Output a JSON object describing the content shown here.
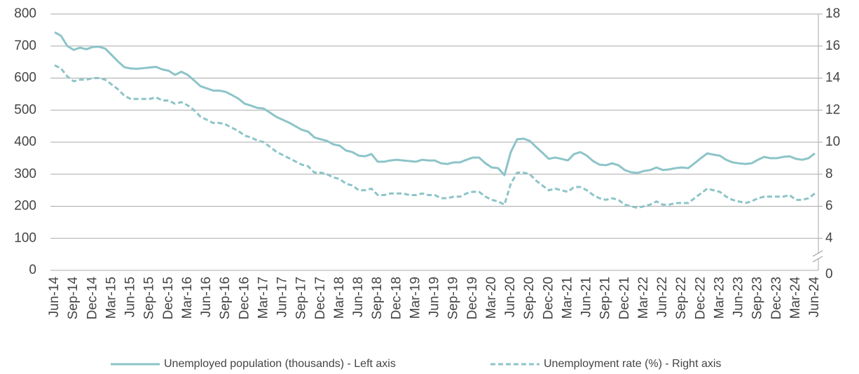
{
  "chart_data": {
    "type": "line",
    "categories": [
      "Jun-14",
      null,
      null,
      "Sep-14",
      null,
      null,
      "Dec-14",
      null,
      null,
      "Mar-15",
      null,
      null,
      "Jun-15",
      null,
      null,
      "Sep-15",
      null,
      null,
      "Dec-15",
      null,
      null,
      "Mar-16",
      null,
      null,
      "Jun-16",
      null,
      null,
      "Sep-16",
      null,
      null,
      "Dec-16",
      null,
      null,
      "Mar-17",
      null,
      null,
      "Jun-17",
      null,
      null,
      "Sep-17",
      null,
      null,
      "Dec-17",
      null,
      null,
      "Mar-18",
      null,
      null,
      "Jun-18",
      null,
      null,
      "Sep-18",
      null,
      null,
      "Dec-18",
      null,
      null,
      "Mar-19",
      null,
      null,
      "Jun-19",
      null,
      null,
      "Sep-19",
      null,
      null,
      "Dec-19",
      null,
      null,
      "Mar-20",
      null,
      null,
      "Jun-20",
      null,
      null,
      "Sep-20",
      null,
      null,
      "Dec-20",
      null,
      null,
      "Mar-21",
      null,
      null,
      "Jun-21",
      null,
      null,
      "Sep-21",
      null,
      null,
      "Dec-21",
      null,
      null,
      "Mar-22",
      null,
      null,
      "Jun-22",
      null,
      null,
      "Sep-22",
      null,
      null,
      "Dec-22",
      null,
      null,
      "Mar-23",
      null,
      null,
      "Jun-23",
      null,
      null,
      "Sep-23",
      null,
      null,
      "Dec-23",
      null,
      null,
      "Mar-24",
      null,
      null,
      "Jun-24"
    ],
    "series": [
      {
        "name": "Unemployed population (thousands) - Left axis",
        "color": "#8cc4c8",
        "dash": false,
        "values": [
          743,
          732,
          700,
          688,
          695,
          690,
          697,
          698,
          692,
          672,
          652,
          634,
          630,
          629,
          631,
          633,
          635,
          627,
          623,
          610,
          620,
          610,
          593,
          575,
          568,
          561,
          561,
          557,
          547,
          536,
          520,
          514,
          507,
          505,
          492,
          479,
          470,
          461,
          450,
          439,
          433,
          415,
          409,
          404,
          393,
          389,
          374,
          369,
          358,
          356,
          363,
          339,
          339,
          343,
          345,
          343,
          341,
          339,
          345,
          343,
          343,
          334,
          332,
          337,
          337,
          345,
          352,
          352,
          334,
          321,
          319,
          297,
          369,
          409,
          411,
          404,
          385,
          367,
          348,
          352,
          348,
          343,
          363,
          369,
          358,
          341,
          330,
          328,
          334,
          328,
          313,
          306,
          304,
          310,
          313,
          321,
          313,
          315,
          319,
          321,
          319,
          334,
          350,
          365,
          361,
          358,
          345,
          337,
          334,
          332,
          334,
          345,
          354,
          350,
          350,
          354,
          356,
          348,
          345,
          350,
          365
        ]
      },
      {
        "name": "Unemployment rate (%) - Right axis",
        "color": "#8cc4c8",
        "dash": true,
        "axis": "y2",
        "values": [
          14.8,
          14.6,
          14.1,
          13.8,
          13.9,
          13.9,
          14.0,
          14.0,
          13.9,
          13.6,
          13.3,
          12.9,
          12.7,
          12.7,
          12.7,
          12.7,
          12.8,
          12.6,
          12.6,
          12.4,
          12.5,
          12.3,
          12.0,
          11.6,
          11.4,
          11.2,
          11.2,
          11.1,
          10.9,
          10.7,
          10.4,
          10.3,
          10.1,
          10.0,
          9.7,
          9.4,
          9.2,
          9.0,
          8.8,
          8.6,
          8.5,
          8.1,
          8.1,
          8.0,
          7.8,
          7.7,
          7.4,
          7.3,
          7.0,
          7.0,
          7.1,
          6.7,
          6.7,
          6.8,
          6.8,
          6.8,
          6.7,
          6.7,
          6.8,
          6.7,
          6.7,
          6.5,
          6.5,
          6.6,
          6.6,
          6.8,
          6.9,
          6.9,
          6.6,
          6.4,
          6.3,
          6.1,
          7.4,
          8.1,
          8.1,
          8.0,
          7.6,
          7.3,
          7.0,
          7.1,
          7.0,
          6.9,
          7.2,
          7.2,
          7.0,
          6.7,
          6.5,
          6.4,
          6.5,
          6.4,
          6.1,
          6.0,
          5.9,
          6.0,
          6.1,
          6.3,
          6.1,
          6.1,
          6.2,
          6.2,
          6.2,
          6.5,
          6.8,
          7.1,
          7.0,
          6.9,
          6.6,
          6.4,
          6.3,
          6.2,
          6.3,
          6.5,
          6.6,
          6.6,
          6.6,
          6.6,
          6.7,
          6.4,
          6.4,
          6.5,
          6.8
        ]
      }
    ],
    "ylim": [
      0,
      800
    ],
    "yticks": [
      0,
      100,
      200,
      300,
      400,
      500,
      600,
      700,
      800
    ],
    "y2lim": [
      2,
      18
    ],
    "y2ticks": [
      4,
      6,
      8,
      10,
      12,
      14,
      16,
      18
    ],
    "y2_break_label": "0",
    "grid": true,
    "legend": "bottom"
  }
}
